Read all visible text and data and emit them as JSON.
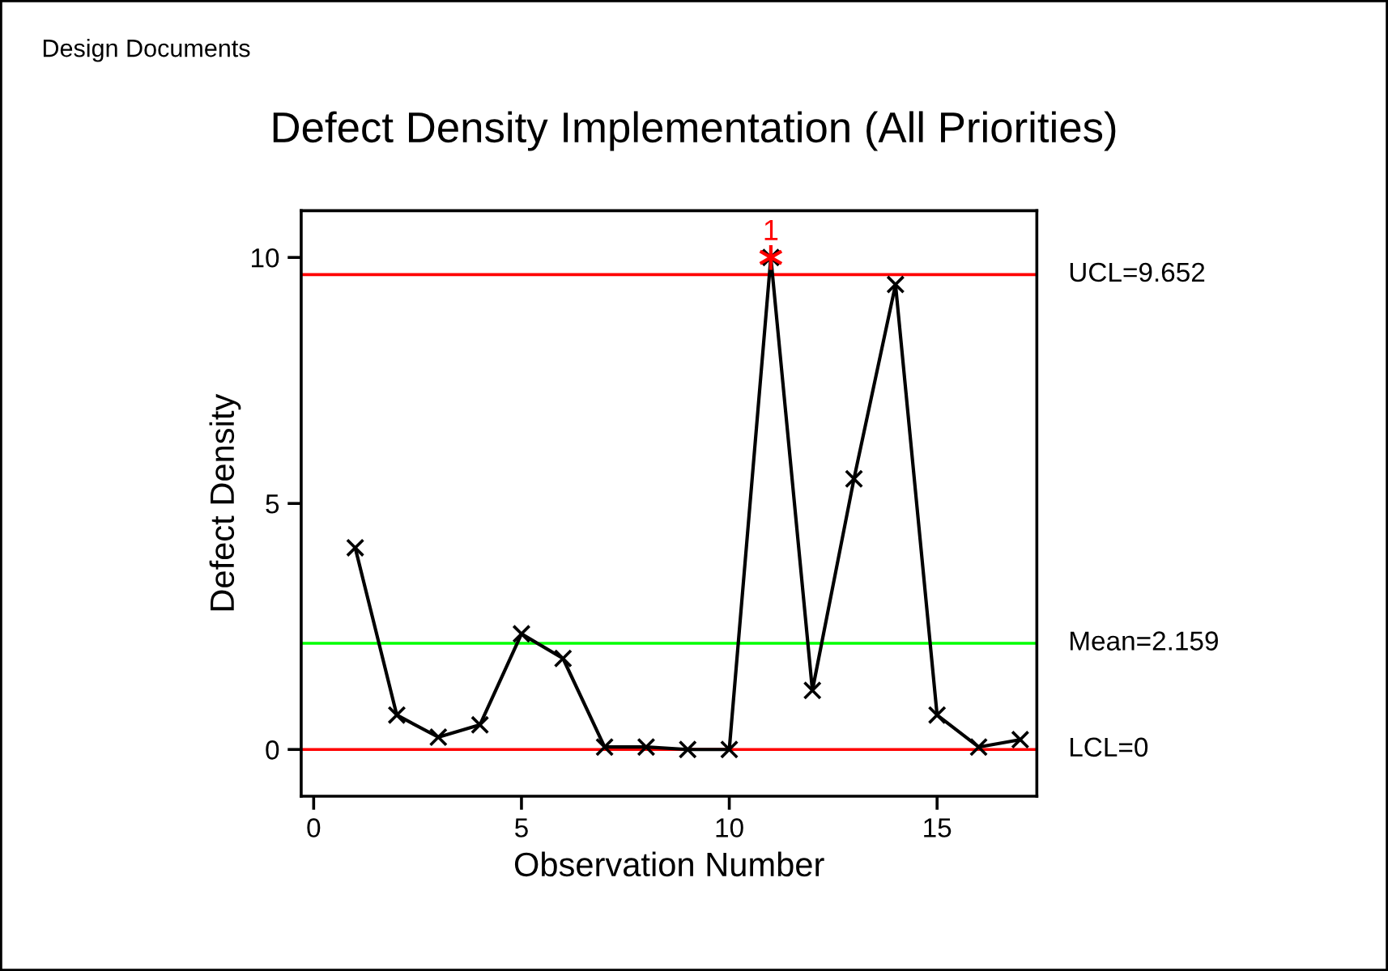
{
  "chart_data": {
    "type": "line",
    "title": "Defect Density Implementation (All Priorities)",
    "xlabel": "Observation Number",
    "ylabel": "Defect Density",
    "annotations": [
      "Design Documents",
      {
        "text": "1",
        "x": 11,
        "y": 10.0
      }
    ],
    "x": [
      1,
      2,
      3,
      4,
      5,
      6,
      7,
      8,
      9,
      10,
      11,
      12,
      13,
      14,
      15,
      16,
      17
    ],
    "series": [
      {
        "color": "#000000",
        "marker": "cross",
        "values": [
          4.1,
          0.7,
          0.25,
          0.5,
          2.35,
          1.85,
          0.05,
          0.05,
          0,
          0,
          10.0,
          1.2,
          5.5,
          9.45,
          0.7,
          0.05,
          0.2
        ]
      },
      {
        "type": "scatter",
        "color": "#ff0000",
        "marker": "cross",
        "x": [
          11
        ],
        "values": [
          10.0
        ]
      }
    ],
    "ref_lines": [
      {
        "axis": "y",
        "value": 9.652,
        "label": "UCL=9.652",
        "color": "#ff0000"
      },
      {
        "axis": "y",
        "value": 2.159,
        "label": "Mean=2.159",
        "color": "#00ff00"
      },
      {
        "axis": "y",
        "value": 0,
        "label": "LCL=0",
        "color": "#ff0000"
      }
    ],
    "xlim": [
      -0.3,
      17.4
    ],
    "xticks": [
      0,
      5,
      10,
      15
    ],
    "ylim": [
      -0.95,
      10.95
    ],
    "yticks": [
      0,
      5,
      10
    ],
    "grid": false,
    "line_style": "solid"
  }
}
